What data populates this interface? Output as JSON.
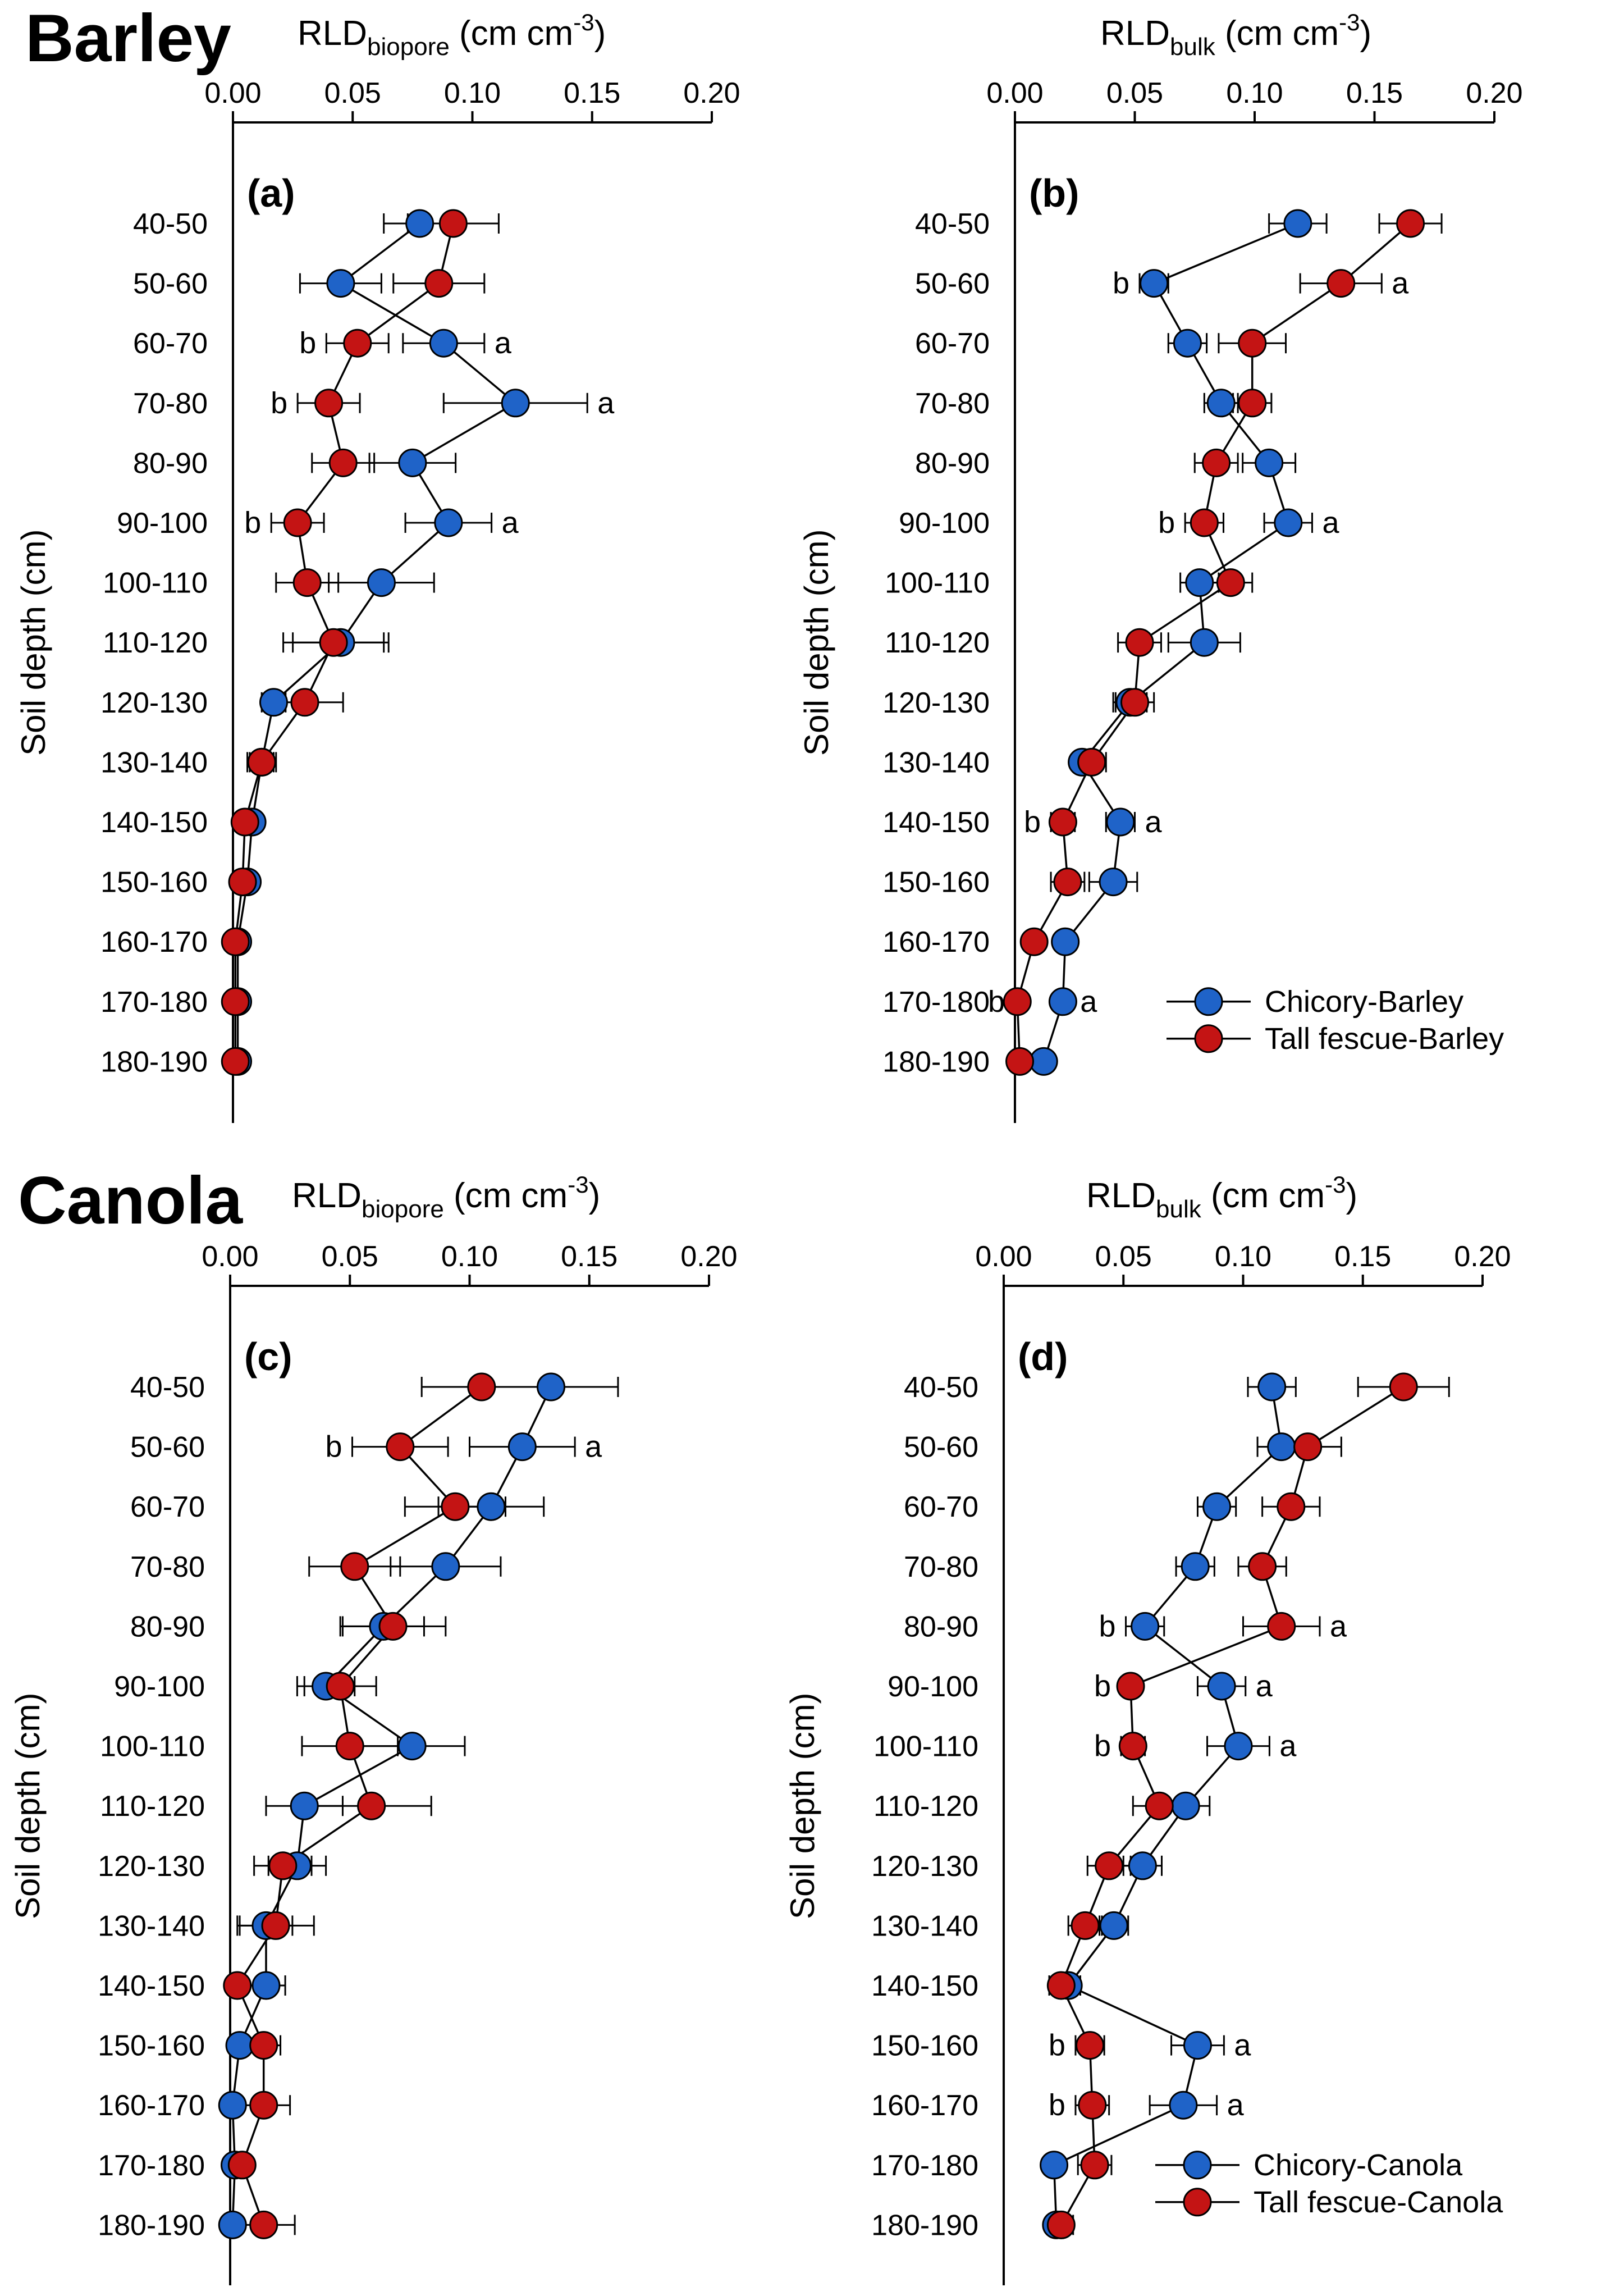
{
  "sections": {
    "barley": "Barley",
    "canola": "Canola"
  },
  "colors": {
    "chicory": "#1f63c8",
    "tall_fescue": "#c41414",
    "axis": "#000000"
  },
  "chart_data": [
    {
      "type": "scatter",
      "panel_label": "(a)",
      "xlabel": {
        "main": "RLD",
        "sub": "biopore",
        "unit_pre": " (cm cm",
        "unit_sup": "-3",
        "unit_post": ")"
      },
      "ylabel": "Soil depth (cm)",
      "x_ticks": [
        "0.00",
        "0.05",
        "0.10",
        "0.15",
        "0.20"
      ],
      "xlim": [
        0,
        0.2
      ],
      "categories": [
        "40-50",
        "50-60",
        "60-70",
        "70-80",
        "80-90",
        "90-100",
        "100-110",
        "110-120",
        "120-130",
        "130-140",
        "140-150",
        "150-160",
        "160-170",
        "170-180",
        "180-190"
      ],
      "series": [
        {
          "key": "chicory",
          "values": [
            0.078,
            0.045,
            0.088,
            0.118,
            0.075,
            0.09,
            0.062,
            0.045,
            0.017,
            0.012,
            0.008,
            0.006,
            0.002,
            0.002,
            0.002
          ],
          "errors": [
            0.015,
            0.017,
            0.017,
            0.03,
            0.018,
            0.018,
            0.022,
            0.02,
            0.005,
            0.006,
            0.002,
            0.003,
            0.001,
            0.001,
            0.001
          ]
        },
        {
          "key": "tall_fescue",
          "values": [
            0.092,
            0.086,
            0.052,
            0.04,
            0.046,
            0.027,
            0.031,
            0.042,
            0.03,
            0.012,
            0.005,
            0.004,
            0.001,
            0.001,
            0.001
          ],
          "errors": [
            0.019,
            0.019,
            0.013,
            0.013,
            0.013,
            0.011,
            0.013,
            0.021,
            0.016,
            0.005,
            0.003,
            0.002,
            0.001,
            0.001,
            0.001
          ]
        }
      ],
      "annotations": [
        {
          "row": 2,
          "side": "left",
          "series": "tall_fescue",
          "text": "b"
        },
        {
          "row": 2,
          "side": "right",
          "series": "chicory",
          "text": "a"
        },
        {
          "row": 3,
          "side": "left",
          "series": "tall_fescue",
          "text": "b"
        },
        {
          "row": 3,
          "side": "right",
          "series": "chicory",
          "text": "a"
        },
        {
          "row": 5,
          "side": "left",
          "series": "tall_fescue",
          "text": "b"
        },
        {
          "row": 5,
          "side": "right",
          "series": "chicory",
          "text": "a"
        }
      ],
      "legend": null
    },
    {
      "type": "scatter",
      "panel_label": "(b)",
      "xlabel": {
        "main": "RLD",
        "sub": "bulk",
        "unit_pre": " (cm cm",
        "unit_sup": "-3",
        "unit_post": ")"
      },
      "ylabel": "Soil depth (cm)",
      "x_ticks": [
        "0.00",
        "0.05",
        "0.10",
        "0.15",
        "0.20"
      ],
      "xlim": [
        0,
        0.2
      ],
      "categories": [
        "40-50",
        "50-60",
        "60-70",
        "70-80",
        "80-90",
        "90-100",
        "100-110",
        "110-120",
        "120-130",
        "130-140",
        "140-150",
        "150-160",
        "160-170",
        "170-180",
        "180-190"
      ],
      "series": [
        {
          "key": "chicory",
          "values": [
            0.118,
            0.058,
            0.072,
            0.086,
            0.106,
            0.114,
            0.077,
            0.079,
            0.048,
            0.028,
            0.044,
            0.041,
            0.021,
            0.02,
            0.012
          ],
          "errors": [
            0.012,
            0.006,
            0.008,
            0.007,
            0.011,
            0.01,
            0.008,
            0.015,
            0.007,
            0.003,
            0.006,
            0.01,
            0.002,
            0.003,
            0.004
          ]
        },
        {
          "key": "tall_fescue",
          "values": [
            0.165,
            0.136,
            0.099,
            0.099,
            0.084,
            0.079,
            0.09,
            0.052,
            0.05,
            0.032,
            0.02,
            0.022,
            0.008,
            0.001,
            0.002
          ],
          "errors": [
            0.013,
            0.017,
            0.014,
            0.008,
            0.009,
            0.008,
            0.009,
            0.009,
            0.008,
            0.006,
            0.005,
            0.007,
            0.003,
            0.001,
            0.002
          ]
        }
      ],
      "annotations": [
        {
          "row": 1,
          "side": "left",
          "series": "chicory",
          "text": "b"
        },
        {
          "row": 1,
          "side": "right",
          "series": "tall_fescue",
          "text": "a"
        },
        {
          "row": 5,
          "side": "left",
          "series": "tall_fescue",
          "text": "b"
        },
        {
          "row": 5,
          "side": "right",
          "series": "chicory",
          "text": "a"
        },
        {
          "row": 10,
          "side": "left",
          "series": "tall_fescue",
          "text": "b"
        },
        {
          "row": 10,
          "side": "right",
          "series": "chicory",
          "text": "a"
        },
        {
          "row": 13,
          "side": "left",
          "series": "tall_fescue",
          "text": "b"
        },
        {
          "row": 13,
          "side": "right",
          "series": "chicory",
          "text": "a"
        }
      ],
      "legend": [
        "Chicory-Barley",
        "Tall fescue-Barley"
      ]
    },
    {
      "type": "scatter",
      "panel_label": "(c)",
      "xlabel": {
        "main": "RLD",
        "sub": "biopore",
        "unit_pre": " (cm cm",
        "unit_sup": "-3",
        "unit_post": ")"
      },
      "ylabel": "Soil depth (cm)",
      "x_ticks": [
        "0.00",
        "0.05",
        "0.10",
        "0.15",
        "0.20"
      ],
      "xlim": [
        0,
        0.2
      ],
      "categories": [
        "40-50",
        "50-60",
        "60-70",
        "70-80",
        "80-90",
        "90-100",
        "100-110",
        "110-120",
        "120-130",
        "130-140",
        "140-150",
        "150-160",
        "160-170",
        "170-180",
        "180-190"
      ],
      "series": [
        {
          "key": "chicory",
          "values": [
            0.134,
            0.122,
            0.109,
            0.09,
            0.064,
            0.04,
            0.076,
            0.031,
            0.028,
            0.015,
            0.015,
            0.004,
            0.001,
            0.002,
            0.001
          ],
          "errors": [
            0.028,
            0.022,
            0.022,
            0.023,
            0.017,
            0.012,
            0.022,
            0.016,
            0.012,
            0.011,
            0.008,
            0.003,
            0.001,
            0.001,
            0.001
          ]
        },
        {
          "key": "tall_fescue",
          "values": [
            0.105,
            0.071,
            0.094,
            0.052,
            0.068,
            0.046,
            0.05,
            0.059,
            0.022,
            0.019,
            0.003,
            0.014,
            0.014,
            0.005,
            0.014
          ],
          "errors": [
            0.025,
            0.02,
            0.021,
            0.019,
            0.022,
            0.015,
            0.02,
            0.025,
            0.012,
            0.016,
            0.003,
            0.007,
            0.011,
            0.003,
            0.013
          ]
        }
      ],
      "annotations": [
        {
          "row": 1,
          "side": "left",
          "series": "tall_fescue",
          "text": "b"
        },
        {
          "row": 1,
          "side": "right",
          "series": "chicory",
          "text": "a"
        }
      ],
      "legend": null
    },
    {
      "type": "scatter",
      "panel_label": "(d)",
      "xlabel": {
        "main": "RLD",
        "sub": "bulk",
        "unit_pre": " (cm cm",
        "unit_sup": "-3",
        "unit_post": ")"
      },
      "ylabel": "Soil depth (cm)",
      "x_ticks": [
        "0.00",
        "0.05",
        "0.10",
        "0.15",
        "0.20"
      ],
      "xlim": [
        0,
        0.2
      ],
      "categories": [
        "40-50",
        "50-60",
        "60-70",
        "70-80",
        "80-90",
        "90-100",
        "100-110",
        "110-120",
        "120-130",
        "130-140",
        "140-150",
        "150-160",
        "160-170",
        "170-180",
        "180-190"
      ],
      "series": [
        {
          "key": "chicory",
          "values": [
            0.112,
            0.116,
            0.089,
            0.08,
            0.059,
            0.091,
            0.098,
            0.076,
            0.058,
            0.046,
            0.027,
            0.081,
            0.075,
            0.021,
            0.022
          ],
          "errors": [
            0.01,
            0.01,
            0.008,
            0.008,
            0.008,
            0.01,
            0.013,
            0.01,
            0.008,
            0.006,
            0.005,
            0.011,
            0.014,
            0.004,
            0.004
          ]
        },
        {
          "key": "tall_fescue",
          "values": [
            0.167,
            0.127,
            0.12,
            0.108,
            0.116,
            0.053,
            0.054,
            0.065,
            0.044,
            0.034,
            0.024,
            0.036,
            0.037,
            0.038,
            0.024
          ],
          "errors": [
            0.019,
            0.014,
            0.012,
            0.01,
            0.016,
            0.004,
            0.005,
            0.011,
            0.009,
            0.007,
            0.005,
            0.006,
            0.007,
            0.007,
            0.005
          ]
        }
      ],
      "annotations": [
        {
          "row": 4,
          "side": "left",
          "series": "chicory",
          "text": "b"
        },
        {
          "row": 4,
          "side": "right",
          "series": "tall_fescue",
          "text": "a"
        },
        {
          "row": 5,
          "side": "left",
          "series": "tall_fescue",
          "text": "b"
        },
        {
          "row": 5,
          "side": "right",
          "series": "chicory",
          "text": "a"
        },
        {
          "row": 6,
          "side": "left",
          "series": "tall_fescue",
          "text": "b"
        },
        {
          "row": 6,
          "side": "right",
          "series": "chicory",
          "text": "a"
        },
        {
          "row": 11,
          "side": "left",
          "series": "tall_fescue",
          "text": "b"
        },
        {
          "row": 11,
          "side": "right",
          "series": "chicory",
          "text": "a"
        },
        {
          "row": 12,
          "side": "left",
          "series": "tall_fescue",
          "text": "b"
        },
        {
          "row": 12,
          "side": "right",
          "series": "chicory",
          "text": "a"
        }
      ],
      "legend": [
        "Chicory-Canola",
        "Tall fescue-Canola"
      ]
    }
  ]
}
